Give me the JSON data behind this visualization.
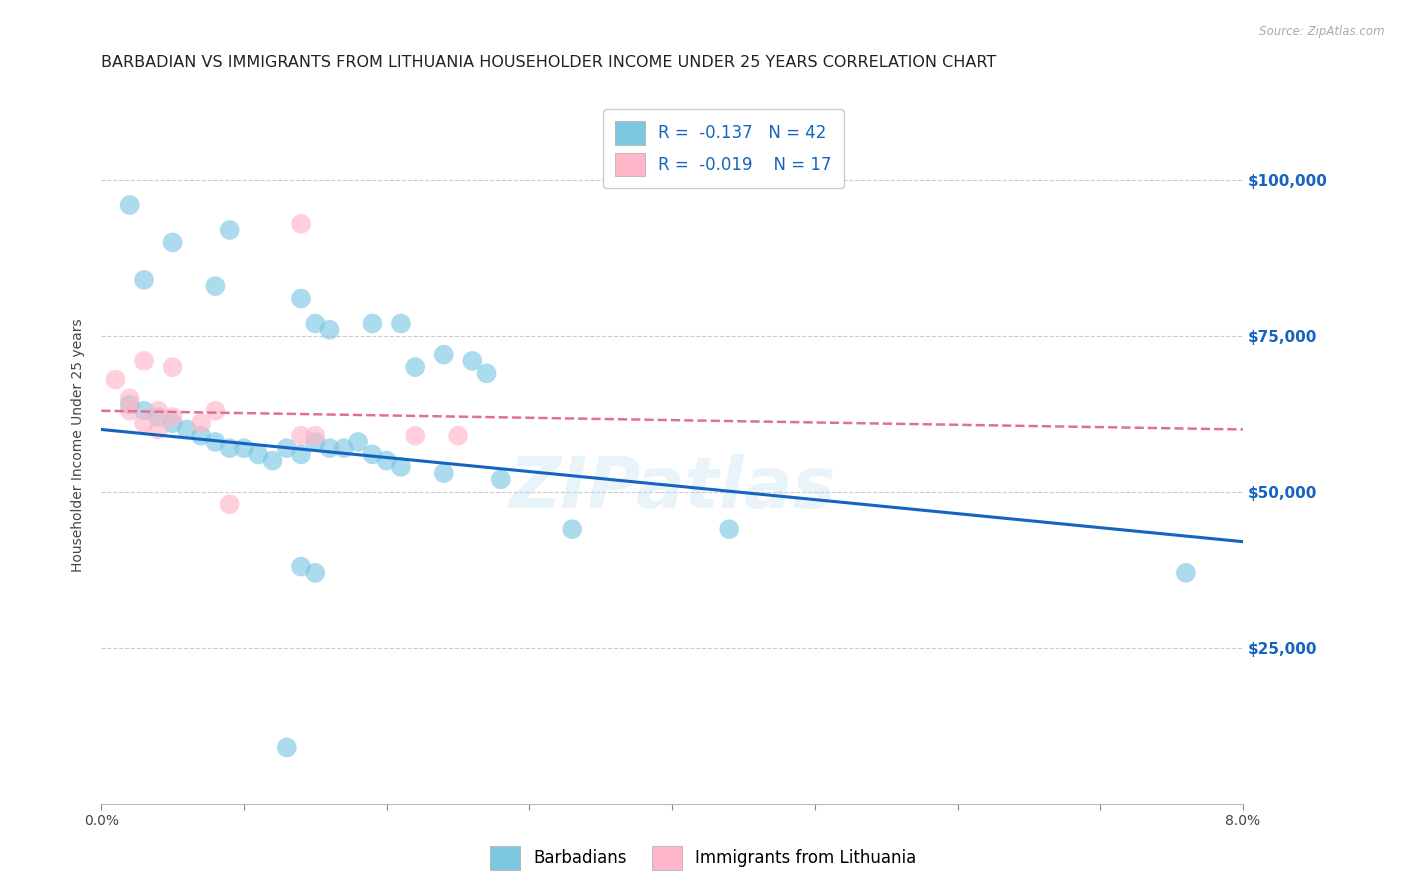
{
  "title": "BARBADIAN VS IMMIGRANTS FROM LITHUANIA HOUSEHOLDER INCOME UNDER 25 YEARS CORRELATION CHART",
  "source": "Source: ZipAtlas.com",
  "ylabel": "Householder Income Under 25 years",
  "legend_label1": "Barbadians",
  "legend_label2": "Immigrants from Lithuania",
  "r1": -0.137,
  "n1": 42,
  "r2": -0.019,
  "n2": 17,
  "xmin": 0.0,
  "xmax": 0.08,
  "ymin": 0,
  "ymax": 115000,
  "yticks": [
    0,
    25000,
    50000,
    75000,
    100000
  ],
  "ytick_labels": [
    "",
    "$25,000",
    "$50,000",
    "$75,000",
    "$100,000"
  ],
  "xticks": [
    0.0,
    0.01,
    0.02,
    0.03,
    0.04,
    0.05,
    0.06,
    0.07,
    0.08
  ],
  "xtick_labels": [
    "0.0%",
    "",
    "",
    "",
    "",
    "",
    "",
    "",
    "8.0%"
  ],
  "color1": "#7ec8e3",
  "color2": "#ffb6c8",
  "trendline1_color": "#1565c0",
  "trendline2_color": "#e07090",
  "watermark": "ZIPatlas",
  "blue_scatter": [
    [
      0.002,
      96000
    ],
    [
      0.005,
      90000
    ],
    [
      0.009,
      92000
    ],
    [
      0.003,
      84000
    ],
    [
      0.008,
      83000
    ],
    [
      0.014,
      81000
    ],
    [
      0.019,
      77000
    ],
    [
      0.021,
      77000
    ],
    [
      0.024,
      72000
    ],
    [
      0.022,
      70000
    ],
    [
      0.026,
      71000
    ],
    [
      0.027,
      69000
    ],
    [
      0.015,
      77000
    ],
    [
      0.016,
      76000
    ],
    [
      0.002,
      64000
    ],
    [
      0.003,
      63000
    ],
    [
      0.004,
      62000
    ],
    [
      0.005,
      61000
    ],
    [
      0.006,
      60000
    ],
    [
      0.007,
      59000
    ],
    [
      0.008,
      58000
    ],
    [
      0.009,
      57000
    ],
    [
      0.01,
      57000
    ],
    [
      0.011,
      56000
    ],
    [
      0.012,
      55000
    ],
    [
      0.013,
      57000
    ],
    [
      0.014,
      56000
    ],
    [
      0.015,
      58000
    ],
    [
      0.016,
      57000
    ],
    [
      0.017,
      57000
    ],
    [
      0.018,
      58000
    ],
    [
      0.019,
      56000
    ],
    [
      0.02,
      55000
    ],
    [
      0.021,
      54000
    ],
    [
      0.024,
      53000
    ],
    [
      0.028,
      52000
    ],
    [
      0.033,
      44000
    ],
    [
      0.044,
      44000
    ],
    [
      0.014,
      38000
    ],
    [
      0.015,
      37000
    ],
    [
      0.013,
      9000
    ],
    [
      0.076,
      37000
    ]
  ],
  "pink_scatter": [
    [
      0.001,
      68000
    ],
    [
      0.002,
      65000
    ],
    [
      0.003,
      71000
    ],
    [
      0.005,
      70000
    ],
    [
      0.014,
      93000
    ],
    [
      0.002,
      63000
    ],
    [
      0.004,
      63000
    ],
    [
      0.003,
      61000
    ],
    [
      0.005,
      62000
    ],
    [
      0.004,
      60000
    ],
    [
      0.007,
      61000
    ],
    [
      0.008,
      63000
    ],
    [
      0.014,
      59000
    ],
    [
      0.015,
      59000
    ],
    [
      0.022,
      59000
    ],
    [
      0.025,
      59000
    ],
    [
      0.009,
      48000
    ]
  ],
  "trendline1_x": [
    0.0,
    0.08
  ],
  "trendline1_y": [
    60000,
    42000
  ],
  "trendline2_x": [
    0.0,
    0.08
  ],
  "trendline2_y": [
    63000,
    60000
  ],
  "background_color": "#ffffff",
  "grid_color": "#cccccc",
  "title_fontsize": 11.5,
  "axis_label_fontsize": 10,
  "tick_label_fontsize": 10,
  "right_tick_color": "#1565c0"
}
